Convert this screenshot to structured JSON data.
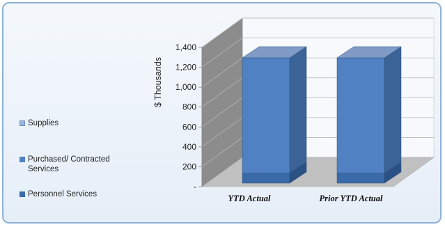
{
  "chart_data": {
    "type": "bar",
    "stacked": true,
    "three_d": true,
    "title": "",
    "xlabel": "",
    "ylabel": "$ Thousands",
    "ylim": [
      0,
      1400
    ],
    "yticks": [
      "-",
      "200",
      "400",
      "600",
      "800",
      "1,000",
      "1,200",
      "1,400"
    ],
    "categories": [
      "YTD Actual",
      "Prior YTD Actual"
    ],
    "series": [
      {
        "name": "Personnel Services",
        "values": [
          100,
          100
        ],
        "color": "#3a6aa8"
      },
      {
        "name": "Purchased/ Contracted Services",
        "values": [
          1160,
          1160
        ],
        "color": "#4f81c3"
      },
      {
        "name": "Supplies",
        "values": [
          0,
          0
        ],
        "color": "#9bb5dc"
      }
    ],
    "legend_order": [
      "Supplies",
      "Purchased/ Contracted Services",
      "Personnel Services"
    ],
    "legend_position": "left",
    "grid": true
  }
}
